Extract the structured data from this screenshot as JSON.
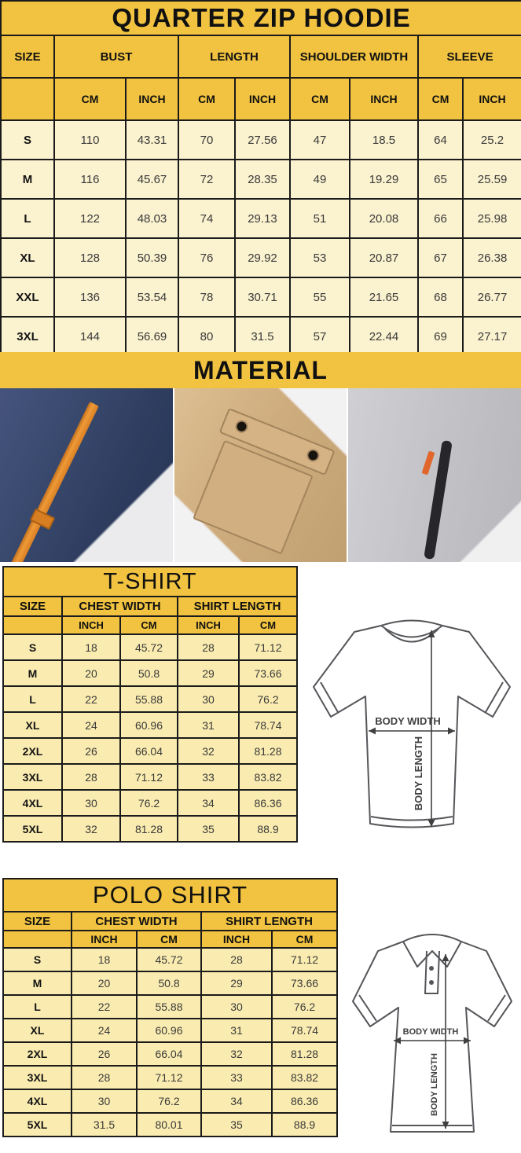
{
  "colors": {
    "header_gold": "#F1C340",
    "hoodie_row_bg": "#FBF2CF",
    "tee_row_bg": "#FAECB0",
    "border": "#1B1B1B",
    "strap_orange": "#EF9A37",
    "zip_pull_orange": "#E0662B"
  },
  "hoodie": {
    "title": "QUARTER ZIP HOODIE",
    "groups": [
      "SIZE",
      "BUST",
      "LENGTH",
      "SHOULDER WIDTH",
      "SLEEVE"
    ],
    "units": [
      "CM",
      "INCH",
      "CM",
      "INCH",
      "CM",
      "INCH",
      "CM",
      "INCH"
    ],
    "rows": [
      [
        "S",
        "110",
        "43.31",
        "70",
        "27.56",
        "47",
        "18.5",
        "64",
        "25.2"
      ],
      [
        "M",
        "116",
        "45.67",
        "72",
        "28.35",
        "49",
        "19.29",
        "65",
        "25.59"
      ],
      [
        "L",
        "122",
        "48.03",
        "74",
        "29.13",
        "51",
        "20.08",
        "66",
        "25.98"
      ],
      [
        "XL",
        "128",
        "50.39",
        "76",
        "29.92",
        "53",
        "20.87",
        "67",
        "26.38"
      ],
      [
        "XXL",
        "136",
        "53.54",
        "78",
        "30.71",
        "55",
        "21.65",
        "68",
        "26.77"
      ],
      [
        "3XL",
        "144",
        "56.69",
        "80",
        "31.5",
        "57",
        "22.44",
        "69",
        "27.17"
      ]
    ]
  },
  "material": {
    "title": "MATERIAL",
    "photos": [
      {
        "name": "navy fleece with orange drawstring"
      },
      {
        "name": "khaki fabric with snap flap pocket"
      },
      {
        "name": "heather gray fabric with zip pocket"
      }
    ]
  },
  "tshirt": {
    "title": "T-SHIRT",
    "groups": [
      "SIZE",
      "CHEST WIDTH",
      "SHIRT LENGTH"
    ],
    "units": [
      "INCH",
      "CM",
      "INCH",
      "CM"
    ],
    "rows": [
      [
        "S",
        "18",
        "45.72",
        "28",
        "71.12"
      ],
      [
        "M",
        "20",
        "50.8",
        "29",
        "73.66"
      ],
      [
        "L",
        "22",
        "55.88",
        "30",
        "76.2"
      ],
      [
        "XL",
        "24",
        "60.96",
        "31",
        "78.74"
      ],
      [
        "2XL",
        "26",
        "66.04",
        "32",
        "81.28"
      ],
      [
        "3XL",
        "28",
        "71.12",
        "33",
        "83.82"
      ],
      [
        "4XL",
        "30",
        "76.2",
        "34",
        "86.36"
      ],
      [
        "5XL",
        "32",
        "81.28",
        "35",
        "88.9"
      ]
    ],
    "diagram": {
      "width_label": "BODY WIDTH",
      "length_label": "BODY LENGTH"
    }
  },
  "polo": {
    "title": "POLO SHIRT",
    "groups": [
      "SIZE",
      "CHEST WIDTH",
      "SHIRT LENGTH"
    ],
    "units": [
      "INCH",
      "CM",
      "INCH",
      "CM"
    ],
    "rows": [
      [
        "S",
        "18",
        "45.72",
        "28",
        "71.12"
      ],
      [
        "M",
        "20",
        "50.8",
        "29",
        "73.66"
      ],
      [
        "L",
        "22",
        "55.88",
        "30",
        "76.2"
      ],
      [
        "XL",
        "24",
        "60.96",
        "31",
        "78.74"
      ],
      [
        "2XL",
        "26",
        "66.04",
        "32",
        "81.28"
      ],
      [
        "3XL",
        "28",
        "71.12",
        "33",
        "83.82"
      ],
      [
        "4XL",
        "30",
        "76.2",
        "34",
        "86.36"
      ],
      [
        "5XL",
        "31.5",
        "80.01",
        "35",
        "88.9"
      ]
    ],
    "diagram": {
      "width_label": "BODY WIDTH",
      "length_label": "BODY LENGTH"
    }
  }
}
